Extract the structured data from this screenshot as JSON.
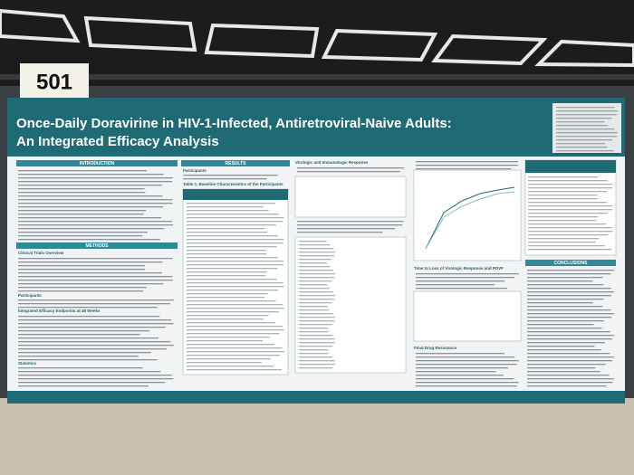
{
  "board_number": "501",
  "poster": {
    "title_lines": [
      "Once-Daily Doravirine in HIV-1-Infected, Antiretroviral-Naive Adults:",
      "An Integrated Efficacy Analysis"
    ],
    "sections": {
      "introduction": "INTRODUCTION",
      "methods": "METHODS",
      "results": "RESULTS",
      "conclusions": "CONCLUSIONS"
    },
    "subheadings": {
      "clinical_trials": "Clinical Trials Overview",
      "participants_methods": "Participants",
      "endpoints": "Integrated Efficacy Endpoints at 48 Weeks",
      "statistics": "Statistics",
      "participants_results": "Participants",
      "table1": "Table 1. Baseline Characteristics of the Participants",
      "virologic": "Virologic and Immunologic Response",
      "time_to_loss": "Time to Loss of Virologic Response and PDVF",
      "resistance": "Final Drug Resistance"
    }
  }
}
